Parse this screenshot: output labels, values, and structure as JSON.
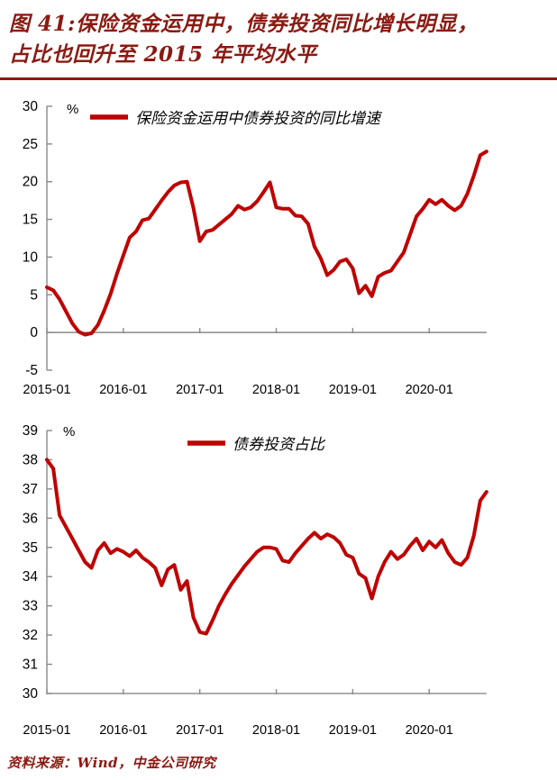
{
  "title": {
    "line1": "图 41:保险资金运用中，债券投资同比增长明显，",
    "line2": "占比也回升至 2015 年平均水平"
  },
  "source": "资料来源：Wind，中金公司研究",
  "colors": {
    "series_red": "#c00000",
    "accent_maroon": "#8b1a12",
    "axis_gray": "#898989",
    "label_black": "#000000"
  },
  "chart_data": [
    {
      "type": "line",
      "legend": "保险资金运用中债券投资的同比增速",
      "unit_label": "%",
      "x_freq": "monthly",
      "x_start": "2015-01",
      "x_end": "2020-10",
      "x_tick_labels": [
        "2015-01",
        "2016-01",
        "2017-01",
        "2018-01",
        "2019-01",
        "2020-01"
      ],
      "ylim": [
        -5,
        30
      ],
      "yticks": [
        30,
        25,
        20,
        15,
        10,
        5,
        0,
        -5
      ],
      "x_axis_at_value": 0,
      "values": [
        6.0,
        5.6,
        4.4,
        2.8,
        1.2,
        0.1,
        -0.3,
        -0.1,
        1.0,
        2.9,
        5.1,
        7.8,
        10.2,
        12.6,
        13.4,
        14.9,
        15.1,
        16.3,
        17.5,
        18.6,
        19.5,
        19.9,
        20.0,
        16.5,
        12.1,
        13.4,
        13.6,
        14.3,
        15.0,
        15.7,
        16.8,
        16.3,
        16.6,
        17.4,
        18.6,
        19.9,
        16.6,
        16.4,
        16.4,
        15.5,
        15.4,
        14.4,
        11.4,
        9.8,
        7.6,
        8.3,
        9.4,
        9.7,
        8.5,
        5.2,
        6.2,
        4.8,
        7.4,
        7.9,
        8.2,
        9.4,
        10.6,
        13.0,
        15.4,
        16.4,
        17.6,
        17.0,
        17.6,
        16.8,
        16.2,
        16.8,
        18.4,
        20.8,
        23.5,
        24.0
      ]
    },
    {
      "type": "line",
      "legend": "债券投资占比",
      "unit_label": "%",
      "x_freq": "monthly",
      "x_start": "2015-01",
      "x_end": "2020-10",
      "x_tick_labels": [
        "2015-01",
        "2016-01",
        "2017-01",
        "2018-01",
        "2019-01",
        "2020-01"
      ],
      "ylim": [
        30,
        39
      ],
      "yticks": [
        39,
        38,
        37,
        36,
        35,
        34,
        33,
        32,
        31,
        30
      ],
      "x_axis_at_value": 30,
      "values": [
        38.0,
        37.7,
        36.1,
        35.7,
        35.3,
        34.9,
        34.5,
        34.3,
        34.9,
        35.15,
        34.8,
        34.95,
        34.85,
        34.7,
        34.9,
        34.65,
        34.5,
        34.3,
        33.7,
        34.25,
        34.4,
        33.55,
        33.85,
        32.6,
        32.1,
        32.05,
        32.5,
        33.0,
        33.4,
        33.75,
        34.05,
        34.35,
        34.6,
        34.85,
        35.0,
        35.0,
        34.95,
        34.55,
        34.5,
        34.8,
        35.05,
        35.3,
        35.5,
        35.3,
        35.45,
        35.35,
        35.15,
        34.75,
        34.65,
        34.1,
        33.95,
        33.25,
        34.0,
        34.5,
        34.85,
        34.6,
        34.75,
        35.05,
        35.3,
        34.9,
        35.2,
        35.0,
        35.25,
        34.8,
        34.5,
        34.4,
        34.65,
        35.4,
        36.6,
        36.9
      ]
    }
  ]
}
